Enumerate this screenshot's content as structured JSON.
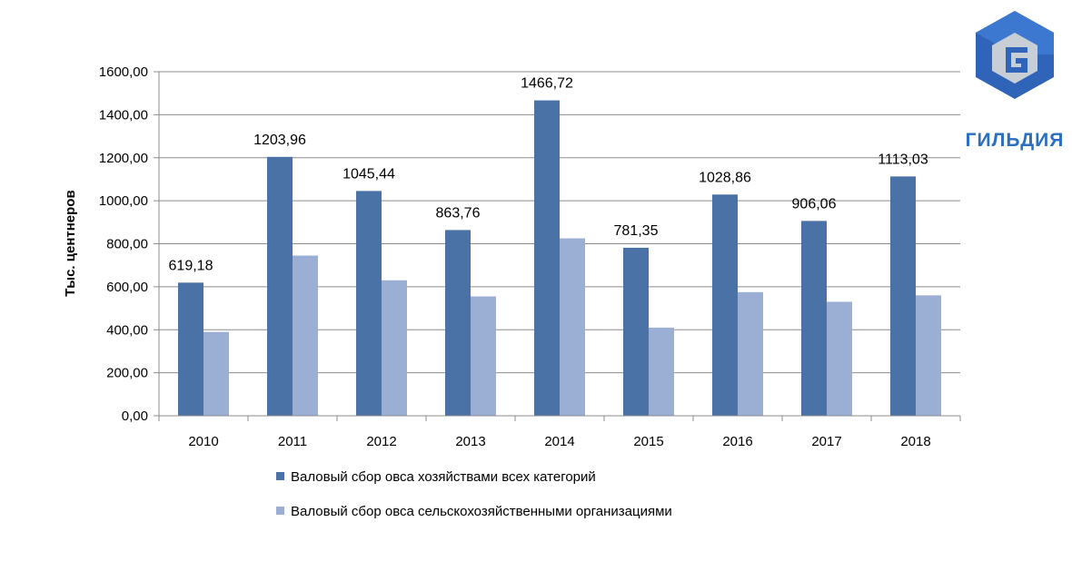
{
  "logo": {
    "text": "ГИЛЬДИЯ"
  },
  "chart_data": {
    "type": "bar",
    "categories": [
      "2010",
      "2011",
      "2012",
      "2013",
      "2014",
      "2015",
      "2016",
      "2017",
      "2018"
    ],
    "series": [
      {
        "name": "Валовый сбор овса хозяйствами всех категорий",
        "color": "#4a72a6",
        "values": [
          619.18,
          1203.96,
          1045.44,
          863.76,
          1466.72,
          781.35,
          1028.86,
          906.06,
          1113.03
        ],
        "labels": [
          "619,18",
          "1203,96",
          "1045,44",
          "863,76",
          "1466,72",
          "781,35",
          "1028,86",
          "906,06",
          "1113,03"
        ]
      },
      {
        "name": "Валовый сбор овса сельскохозяйственными  организациями",
        "color": "#9aafd3",
        "values": [
          390,
          745,
          630,
          555,
          825,
          410,
          575,
          530,
          560
        ]
      }
    ],
    "ylabel": "Тыс. центнеров",
    "ylim": [
      0,
      1600
    ],
    "yticks": [
      0,
      200,
      400,
      600,
      800,
      1000,
      1200,
      1400,
      1600
    ],
    "ytick_labels": [
      "0,00",
      "200,00",
      "400,00",
      "600,00",
      "800,00",
      "1000,00",
      "1200,00",
      "1400,00",
      "1600,00"
    ],
    "grid": true,
    "legend_position": "bottom"
  }
}
